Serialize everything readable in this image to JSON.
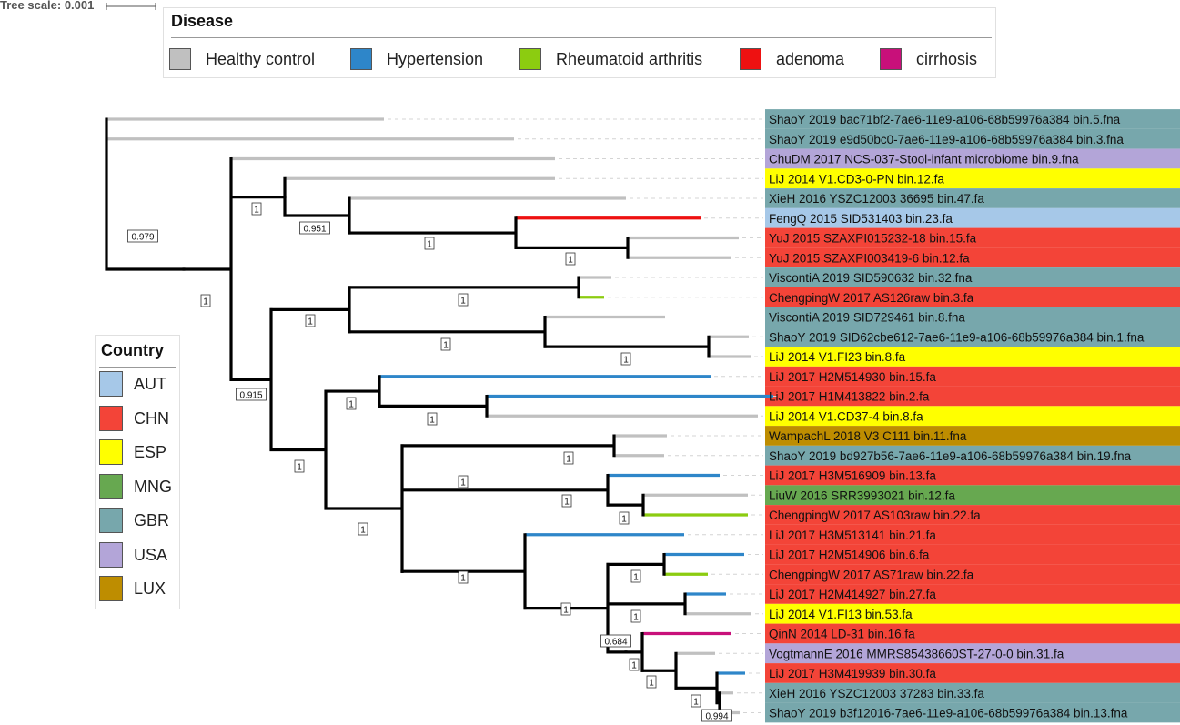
{
  "tree_scale": {
    "label": "Tree scale: 0.001"
  },
  "legends": {
    "disease": {
      "title": "Disease",
      "items": [
        {
          "label": "Healthy control",
          "color": "#c0c0c0"
        },
        {
          "label": "Hypertension",
          "color": "#2e86c9"
        },
        {
          "label": "Rheumatoid arthritis",
          "color": "#8ccc10"
        },
        {
          "label": "adenoma",
          "color": "#ee1111"
        },
        {
          "label": "cirrhosis",
          "color": "#c8107a"
        }
      ]
    },
    "country": {
      "title": "Country",
      "items": [
        {
          "label": "AUT",
          "color": "#a6c8e8"
        },
        {
          "label": "CHN",
          "color": "#f34438"
        },
        {
          "label": "ESP",
          "color": "#ffff00"
        },
        {
          "label": "MNG",
          "color": "#67a850"
        },
        {
          "label": "GBR",
          "color": "#77a7ac"
        },
        {
          "label": "USA",
          "color": "#b3a5d8"
        },
        {
          "label": "LUX",
          "color": "#be8d00"
        }
      ]
    }
  },
  "tips": [
    {
      "label": "ShaoY 2019 bac71bf2-7ae6-11e9-a106-68b59976a384 bin.5.fna",
      "country": "GBR",
      "disease": "Healthy control"
    },
    {
      "label": "ShaoY 2019 e9d50bc0-7ae6-11e9-a106-68b59976a384 bin.3.fna",
      "country": "GBR",
      "disease": "Healthy control"
    },
    {
      "label": "ChuDM 2017 NCS-037-Stool-infant microbiome bin.9.fna",
      "country": "USA",
      "disease": "Healthy control"
    },
    {
      "label": "LiJ 2014 V1.CD3-0-PN bin.12.fa",
      "country": "ESP",
      "disease": "Healthy control"
    },
    {
      "label": "XieH 2016 YSZC12003 36695 bin.47.fa",
      "country": "GBR",
      "disease": "Healthy control"
    },
    {
      "label": "FengQ 2015 SID531403 bin.23.fa",
      "country": "AUT",
      "disease": "adenoma"
    },
    {
      "label": "YuJ 2015 SZAXPI015232-18 bin.15.fa",
      "country": "CHN",
      "disease": "Healthy control"
    },
    {
      "label": "YuJ 2015 SZAXPI003419-6 bin.12.fa",
      "country": "CHN",
      "disease": "Healthy control"
    },
    {
      "label": "ViscontiA 2019 SID590632 bin.32.fna",
      "country": "GBR",
      "disease": "Healthy control"
    },
    {
      "label": "ChengpingW 2017 AS126raw bin.3.fa",
      "country": "CHN",
      "disease": "Rheumatoid arthritis"
    },
    {
      "label": "ViscontiA 2019 SID729461 bin.8.fna",
      "country": "GBR",
      "disease": "Healthy control"
    },
    {
      "label": "ShaoY 2019 SID62cbe612-7ae6-11e9-a106-68b59976a384 bin.1.fna",
      "country": "GBR",
      "disease": "Healthy control"
    },
    {
      "label": "LiJ 2014 V1.FI23 bin.8.fa",
      "country": "ESP",
      "disease": "Healthy control"
    },
    {
      "label": "LiJ 2017 H2M514930 bin.15.fa",
      "country": "CHN",
      "disease": "Hypertension"
    },
    {
      "label": "LiJ 2017 H1M413822 bin.2.fa",
      "country": "CHN",
      "disease": "Hypertension"
    },
    {
      "label": "LiJ 2014 V1.CD37-4 bin.8.fa",
      "country": "ESP",
      "disease": "Healthy control"
    },
    {
      "label": "WampachL 2018 V3 C111 bin.11.fna",
      "country": "LUX",
      "disease": "Healthy control"
    },
    {
      "label": "ShaoY 2019 bd927b56-7ae6-11e9-a106-68b59976a384 bin.19.fna",
      "country": "GBR",
      "disease": "Healthy control"
    },
    {
      "label": "LiJ 2017 H3M516909 bin.13.fa",
      "country": "CHN",
      "disease": "Hypertension"
    },
    {
      "label": "LiuW 2016 SRR3993021 bin.12.fa",
      "country": "MNG",
      "disease": "Healthy control"
    },
    {
      "label": "ChengpingW 2017 AS103raw bin.22.fa",
      "country": "CHN",
      "disease": "Rheumatoid arthritis"
    },
    {
      "label": "LiJ 2017 H3M513141 bin.21.fa",
      "country": "CHN",
      "disease": "Hypertension"
    },
    {
      "label": "LiJ 2017 H2M514906 bin.6.fa",
      "country": "CHN",
      "disease": "Hypertension"
    },
    {
      "label": "ChengpingW 2017 AS71raw bin.22.fa",
      "country": "CHN",
      "disease": "Rheumatoid arthritis"
    },
    {
      "label": "LiJ 2017 H2M414927 bin.27.fa",
      "country": "CHN",
      "disease": "Hypertension"
    },
    {
      "label": "LiJ 2014 V1.FI13 bin.53.fa",
      "country": "ESP",
      "disease": "Healthy control"
    },
    {
      "label": "QinN 2014 LD-31 bin.16.fa",
      "country": "CHN",
      "disease": "cirrhosis"
    },
    {
      "label": "VogtmannE 2016 MMRS85438660ST-27-0-0 bin.31.fa",
      "country": "USA",
      "disease": "Healthy control"
    },
    {
      "label": "LiJ 2017 H3M419939 bin.30.fa",
      "country": "CHN",
      "disease": "Hypertension"
    },
    {
      "label": "XieH 2016 YSZC12003 37283 bin.33.fa",
      "country": "GBR",
      "disease": "Healthy control"
    },
    {
      "label": "ShaoY 2019 b3f12016-7ae6-11e9-a106-68b59976a384 bin.13.fna",
      "country": "GBR",
      "disease": "Healthy control"
    }
  ],
  "support_values": [
    "0.979",
    "1",
    "1",
    "0.951",
    "1",
    "1",
    "0.915",
    "1",
    "1",
    "1",
    "1",
    "1",
    "1",
    "1",
    "1",
    "1",
    "1",
    "1",
    "1",
    "1",
    "1",
    "1",
    "1",
    "0.684",
    "1",
    "1",
    "1",
    "0.994"
  ]
}
